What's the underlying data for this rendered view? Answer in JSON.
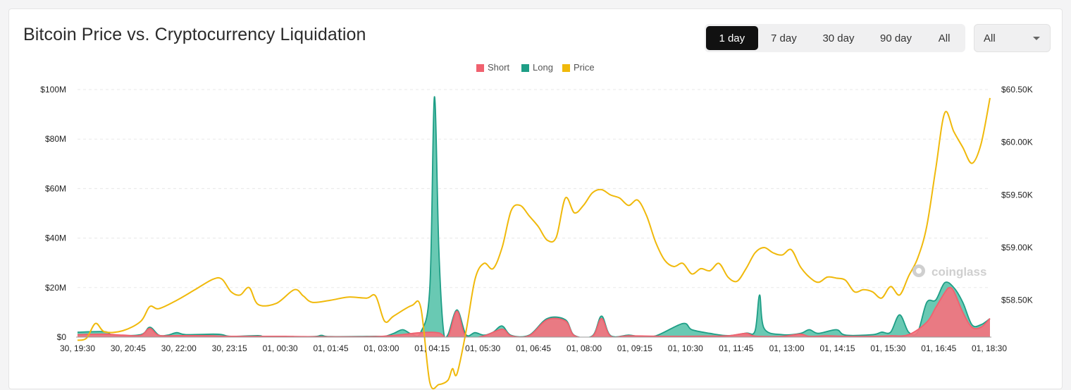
{
  "header": {
    "title": "Bitcoin Price vs. Cryptocurrency Liquidation"
  },
  "range_tabs": [
    {
      "label": "1 day",
      "active": true
    },
    {
      "label": "7 day",
      "active": false
    },
    {
      "label": "30 day",
      "active": false
    },
    {
      "label": "90 day",
      "active": false
    },
    {
      "label": "All",
      "active": false
    }
  ],
  "exchange_select": {
    "value": "All"
  },
  "watermark": "coinglass",
  "colors": {
    "short": "#f0616f",
    "short_fill": "#f4737f",
    "long": "#1e9e86",
    "long_fill": "#5cc4ac",
    "price": "#f0b90b",
    "grid": "#e8e8e8"
  },
  "chart_data": {
    "type": "area",
    "title": "Bitcoin Price vs. Cryptocurrency Liquidation",
    "legend": [
      "Short",
      "Long",
      "Price"
    ],
    "legend_position": "top-center",
    "grid": true,
    "x_labels": [
      "30, 19:30",
      "30, 20:45",
      "30, 22:00",
      "30, 23:15",
      "01, 00:30",
      "01, 01:45",
      "01, 03:00",
      "01, 04:15",
      "01, 05:30",
      "01, 06:45",
      "01, 08:00",
      "01, 09:15",
      "01, 10:30",
      "01, 11:45",
      "01, 13:00",
      "01, 14:15",
      "01, 15:30",
      "01, 16:45",
      "01, 18:30"
    ],
    "y_left": {
      "ticks": [
        "$0",
        "$20M",
        "$40M",
        "$60M",
        "$80M",
        "$100M"
      ],
      "range": [
        0,
        100000000
      ]
    },
    "y_right": {
      "ticks": [
        "$58.50K",
        "$59.00K",
        "$59.50K",
        "$60.00K",
        "$60.50K"
      ],
      "range": [
        58150,
        60500
      ]
    },
    "series": [
      {
        "name": "Short",
        "points": [
          [
            0,
            1.0
          ],
          [
            3,
            1.2
          ],
          [
            5,
            0.8
          ],
          [
            7,
            0.7
          ],
          [
            8,
            3.5
          ],
          [
            9,
            0.7
          ],
          [
            11,
            0.6
          ],
          [
            13,
            0.6
          ],
          [
            15,
            0.5
          ],
          [
            17,
            0.3
          ],
          [
            23,
            0.3
          ],
          [
            25,
            0.2
          ],
          [
            33,
            0.2
          ],
          [
            38,
            1.8
          ],
          [
            40,
            1.7
          ],
          [
            41,
            0
          ],
          [
            42,
            10.5
          ],
          [
            43,
            0.3
          ],
          [
            45,
            0.5
          ],
          [
            47,
            3.2
          ],
          [
            48,
            0.5
          ],
          [
            50,
            0.6
          ],
          [
            52,
            7.0
          ],
          [
            54,
            6.5
          ],
          [
            55,
            0.6
          ],
          [
            57,
            0.3
          ],
          [
            58,
            7.5
          ],
          [
            59,
            0.4
          ],
          [
            61,
            0.5
          ],
          [
            66,
            0.3
          ],
          [
            70,
            0.4
          ],
          [
            72,
            0.5
          ],
          [
            74,
            1.5
          ],
          [
            75,
            0.4
          ],
          [
            78,
            0.3
          ],
          [
            80,
            1.2
          ],
          [
            81,
            0.3
          ],
          [
            83,
            0.5
          ],
          [
            85,
            0.3
          ],
          [
            88,
            0.3
          ],
          [
            90,
            0.5
          ],
          [
            92,
            1.0
          ],
          [
            94,
            6.0
          ],
          [
            95,
            12.0
          ],
          [
            96,
            18.0
          ],
          [
            96.5,
            20.0
          ],
          [
            97,
            18.5
          ],
          [
            98,
            10.0
          ],
          [
            99,
            4.0
          ],
          [
            100,
            4.0
          ],
          [
            101,
            7.5
          ]
        ]
      },
      {
        "name": "Long",
        "points": [
          [
            0,
            2.0
          ],
          [
            3,
            2.2
          ],
          [
            4,
            0.8
          ],
          [
            7,
            1.0
          ],
          [
            8,
            4.0
          ],
          [
            9,
            0.8
          ],
          [
            10,
            0.8
          ],
          [
            11,
            1.8
          ],
          [
            12,
            1.0
          ],
          [
            15,
            1.2
          ],
          [
            16,
            1.0
          ],
          [
            17,
            0.3
          ],
          [
            20,
            0.6
          ],
          [
            21,
            0.2
          ],
          [
            26,
            0.2
          ],
          [
            27,
            0.7
          ],
          [
            28,
            0.2
          ],
          [
            33,
            0.3
          ],
          [
            34,
            0.3
          ],
          [
            35,
            1.5
          ],
          [
            36,
            3.0
          ],
          [
            37,
            1.2
          ],
          [
            38,
            2.0
          ],
          [
            39,
            20.0
          ],
          [
            39.5,
            97.0
          ],
          [
            40,
            35.0
          ],
          [
            40.5,
            3.0
          ],
          [
            41,
            1.0
          ],
          [
            42,
            11.0
          ],
          [
            43,
            1.0
          ],
          [
            44,
            1.8
          ],
          [
            45,
            0.8
          ],
          [
            46,
            2.0
          ],
          [
            47,
            4.5
          ],
          [
            48,
            0.7
          ],
          [
            50,
            0.8
          ],
          [
            52,
            7.5
          ],
          [
            54,
            7.0
          ],
          [
            55,
            0.7
          ],
          [
            57,
            0.5
          ],
          [
            58,
            8.5
          ],
          [
            59,
            0.6
          ],
          [
            61,
            0.8
          ],
          [
            62,
            0.4
          ],
          [
            64,
            0.5
          ],
          [
            67,
            5.5
          ],
          [
            68,
            3.0
          ],
          [
            70,
            1.5
          ],
          [
            72,
            0.6
          ],
          [
            74,
            1.6
          ],
          [
            75,
            2.5
          ],
          [
            75.5,
            17.0
          ],
          [
            76,
            3.5
          ],
          [
            78,
            1.0
          ],
          [
            80,
            1.5
          ],
          [
            81,
            3.0
          ],
          [
            82,
            1.5
          ],
          [
            84,
            3.0
          ],
          [
            85,
            0.8
          ],
          [
            88,
            1.0
          ],
          [
            89,
            2.0
          ],
          [
            90,
            2.0
          ],
          [
            91,
            9.0
          ],
          [
            92,
            2.0
          ],
          [
            93,
            2.0
          ],
          [
            94,
            14.0
          ],
          [
            95,
            15.0
          ],
          [
            96,
            22.0
          ],
          [
            97,
            20.0
          ],
          [
            98,
            14.0
          ],
          [
            99,
            5.0
          ],
          [
            100,
            5.0
          ],
          [
            101,
            7.5
          ]
        ]
      },
      {
        "name": "Price",
        "points": [
          [
            0,
            58.12
          ],
          [
            1,
            58.14
          ],
          [
            2,
            58.28
          ],
          [
            3,
            58.2
          ],
          [
            5,
            58.21
          ],
          [
            7,
            58.3
          ],
          [
            8,
            58.44
          ],
          [
            9,
            58.42
          ],
          [
            11,
            58.5
          ],
          [
            13,
            58.6
          ],
          [
            15,
            58.7
          ],
          [
            16,
            58.7
          ],
          [
            17,
            58.58
          ],
          [
            18,
            58.55
          ],
          [
            19,
            58.62
          ],
          [
            20,
            58.46
          ],
          [
            22,
            58.47
          ],
          [
            24,
            58.6
          ],
          [
            25,
            58.54
          ],
          [
            26,
            58.48
          ],
          [
            28,
            58.5
          ],
          [
            30,
            58.53
          ],
          [
            32,
            58.52
          ],
          [
            33,
            58.54
          ],
          [
            34,
            58.3
          ],
          [
            35,
            58.35
          ],
          [
            37,
            58.45
          ],
          [
            38,
            58.43
          ],
          [
            39,
            57.72
          ],
          [
            40,
            57.7
          ],
          [
            41,
            57.74
          ],
          [
            41.5,
            57.85
          ],
          [
            42,
            57.8
          ],
          [
            43,
            58.2
          ],
          [
            44,
            58.7
          ],
          [
            45,
            58.85
          ],
          [
            46,
            58.8
          ],
          [
            47,
            59.0
          ],
          [
            48,
            59.35
          ],
          [
            49,
            59.4
          ],
          [
            50,
            59.3
          ],
          [
            51,
            59.2
          ],
          [
            52,
            59.07
          ],
          [
            53,
            59.1
          ],
          [
            54,
            59.47
          ],
          [
            55,
            59.33
          ],
          [
            56,
            59.4
          ],
          [
            57,
            59.52
          ],
          [
            58,
            59.55
          ],
          [
            59,
            59.5
          ],
          [
            60,
            59.47
          ],
          [
            61,
            59.4
          ],
          [
            62,
            59.45
          ],
          [
            63,
            59.3
          ],
          [
            64,
            59.05
          ],
          [
            65,
            58.88
          ],
          [
            66,
            58.82
          ],
          [
            67,
            58.85
          ],
          [
            68,
            58.75
          ],
          [
            69,
            58.8
          ],
          [
            70,
            58.78
          ],
          [
            71,
            58.85
          ],
          [
            72,
            58.72
          ],
          [
            73,
            58.68
          ],
          [
            74,
            58.8
          ],
          [
            75,
            58.95
          ],
          [
            76,
            59.0
          ],
          [
            77,
            58.95
          ],
          [
            78,
            58.93
          ],
          [
            79,
            58.98
          ],
          [
            80,
            58.82
          ],
          [
            81,
            58.72
          ],
          [
            82,
            58.67
          ],
          [
            83,
            58.72
          ],
          [
            84,
            58.71
          ],
          [
            85,
            58.69
          ],
          [
            86,
            58.58
          ],
          [
            87,
            58.6
          ],
          [
            88,
            58.58
          ],
          [
            89,
            58.52
          ],
          [
            90,
            58.63
          ],
          [
            91,
            58.55
          ],
          [
            92,
            58.73
          ],
          [
            93,
            58.9
          ],
          [
            94,
            59.2
          ],
          [
            95,
            59.75
          ],
          [
            96,
            60.28
          ],
          [
            97,
            60.1
          ],
          [
            98,
            59.95
          ],
          [
            99,
            59.8
          ],
          [
            100,
            59.98
          ],
          [
            101,
            60.42
          ]
        ]
      }
    ],
    "notes_units": "Short/Long values in $M; Price in $K; x is step index across the 1-day window"
  }
}
